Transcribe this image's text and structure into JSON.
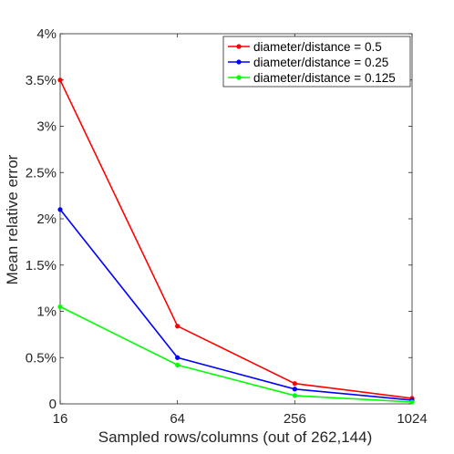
{
  "chart_data": {
    "type": "line",
    "xlabel": "Sampled rows/columns (out of 262,144)",
    "ylabel": "Mean relative error",
    "x_scale": "log2",
    "x": [
      16,
      64,
      256,
      1024
    ],
    "x_tick_labels": [
      "16",
      "64",
      "256",
      "1024"
    ],
    "xlim": [
      16,
      1024
    ],
    "ylim": [
      0,
      4
    ],
    "y_ticks": [
      0,
      0.5,
      1,
      1.5,
      2,
      2.5,
      3,
      3.5,
      4
    ],
    "y_tick_labels": [
      "0",
      "0.5%",
      "1%",
      "1.5%",
      "2%",
      "2.5%",
      "3%",
      "3.5%",
      "4%"
    ],
    "grid": false,
    "legend_position": "top-right",
    "series": [
      {
        "name": "diameter/distance = 0.5",
        "color": "#ff0000",
        "values": [
          3.5,
          0.84,
          0.22,
          0.06
        ]
      },
      {
        "name": "diameter/distance = 0.25",
        "color": "#0000ff",
        "values": [
          2.1,
          0.5,
          0.16,
          0.04
        ]
      },
      {
        "name": "diameter/distance = 0.125",
        "color": "#00ff00",
        "values": [
          1.05,
          0.42,
          0.09,
          0.02
        ]
      }
    ]
  }
}
